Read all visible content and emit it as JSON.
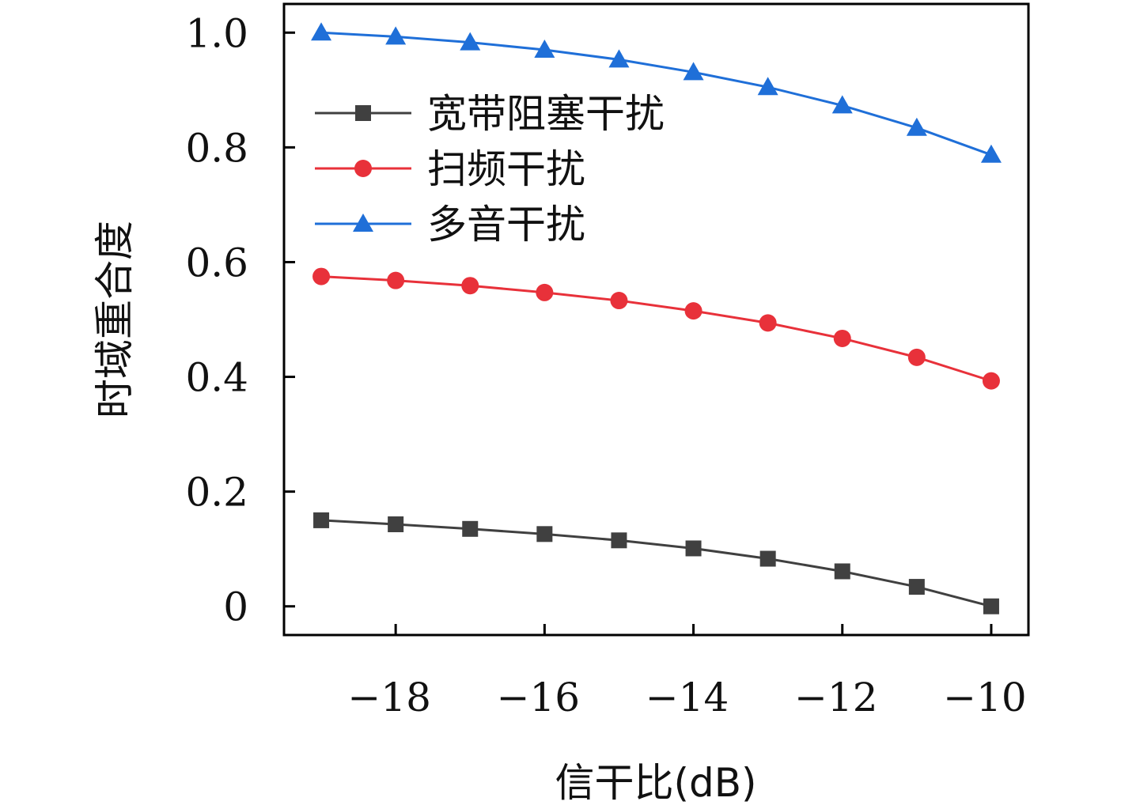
{
  "chart_data": {
    "type": "line",
    "title": "",
    "xlabel": "信干比(dB)",
    "ylabel": "时域重合度",
    "x": [
      -19,
      -18,
      -17,
      -16,
      -15,
      -14,
      -13,
      -12,
      -11,
      -10
    ],
    "xlim": [
      -19.5,
      -9.5
    ],
    "ylim": [
      -0.05,
      1.05
    ],
    "xticks": [
      -18,
      -16,
      -14,
      -12,
      -10
    ],
    "xtick_labels": [
      "−18",
      "−16",
      "−14",
      "−12",
      "−10"
    ],
    "yticks": [
      0,
      0.2,
      0.4,
      0.6,
      0.8,
      1.0
    ],
    "ytick_labels": [
      "0",
      "0.2",
      "0.4",
      "0.6",
      "0.8",
      "1.0"
    ],
    "grid": false,
    "legend_position": "upper-center",
    "series": [
      {
        "name": "宽带阻塞干扰",
        "color": "#404040",
        "marker": "square",
        "values": [
          0.15,
          0.143,
          0.135,
          0.126,
          0.115,
          0.101,
          0.083,
          0.061,
          0.034,
          0.0
        ]
      },
      {
        "name": "扫频干扰",
        "color": "#e8313a",
        "marker": "circle",
        "values": [
          0.575,
          0.568,
          0.559,
          0.547,
          0.533,
          0.515,
          0.494,
          0.467,
          0.434,
          0.393
        ]
      },
      {
        "name": "多音干扰",
        "color": "#1f6fd8",
        "marker": "triangle",
        "values": [
          1.0,
          0.993,
          0.983,
          0.97,
          0.953,
          0.931,
          0.905,
          0.873,
          0.834,
          0.787
        ]
      }
    ]
  }
}
